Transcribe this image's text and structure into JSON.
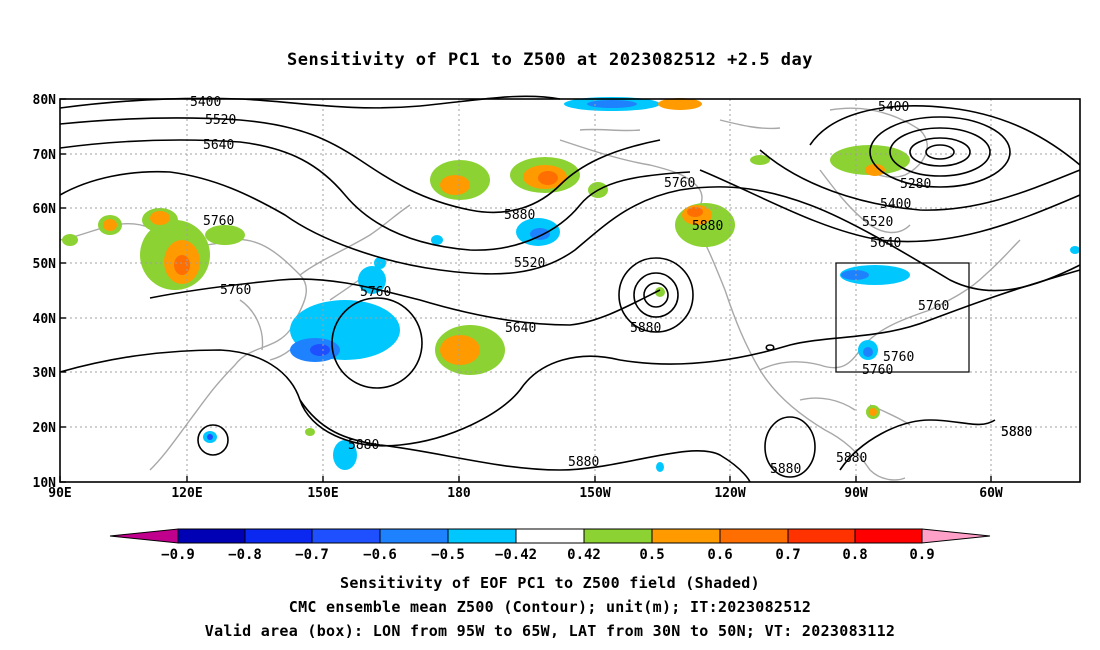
{
  "title": "Sensitivity of PC1 to Z500 at 2023082512 +2.5 day",
  "axes": {
    "lat_labels": [
      "80N",
      "70N",
      "60N",
      "50N",
      "40N",
      "30N",
      "20N",
      "10N"
    ],
    "lon_labels": [
      "90E",
      "120E",
      "150E",
      "180",
      "150W",
      "120W",
      "90W",
      "60W"
    ],
    "lon_range": [
      "90E",
      "45W"
    ],
    "lat_range": [
      "10N",
      "80N"
    ]
  },
  "contour_labels": [
    "5400",
    "5520",
    "5640",
    "5760",
    "5760",
    "5280",
    "5400",
    "5520",
    "5640",
    "5760",
    "5760",
    "5880",
    "5880",
    "5520",
    "5640",
    "5760",
    "5880",
    "5760",
    "5760",
    "5880",
    "5880",
    "5880",
    "5880",
    "5880",
    "5880",
    "5400"
  ],
  "colorbar": {
    "ticks": [
      "−0.9",
      "−0.8",
      "−0.7",
      "−0.6",
      "−0.5",
      "−0.42",
      "0.42",
      "0.5",
      "0.6",
      "0.7",
      "0.8",
      "0.9"
    ],
    "colors": [
      "#c0008c",
      "#0000b4",
      "#0a28f0",
      "#1e50ff",
      "#1e82ff",
      "#00c8ff",
      "#ffffff",
      "#8cd232",
      "#ff9b00",
      "#ff6e00",
      "#ff3200",
      "#ff0000",
      "#ffa0c8"
    ]
  },
  "valid_box": {
    "lon_w": -95,
    "lon_e": -65,
    "lat_s": 30,
    "lat_n": 50
  },
  "caption": {
    "line1": "Sensitivity of EOF PC1 to Z500 field (Shaded)",
    "line2": "CMC ensemble mean Z500 (Contour); unit(m); IT:2023082512",
    "line3": "Valid area (box): LON from 95W to 65W, LAT from 30N to 50N; VT: 2023083112"
  }
}
